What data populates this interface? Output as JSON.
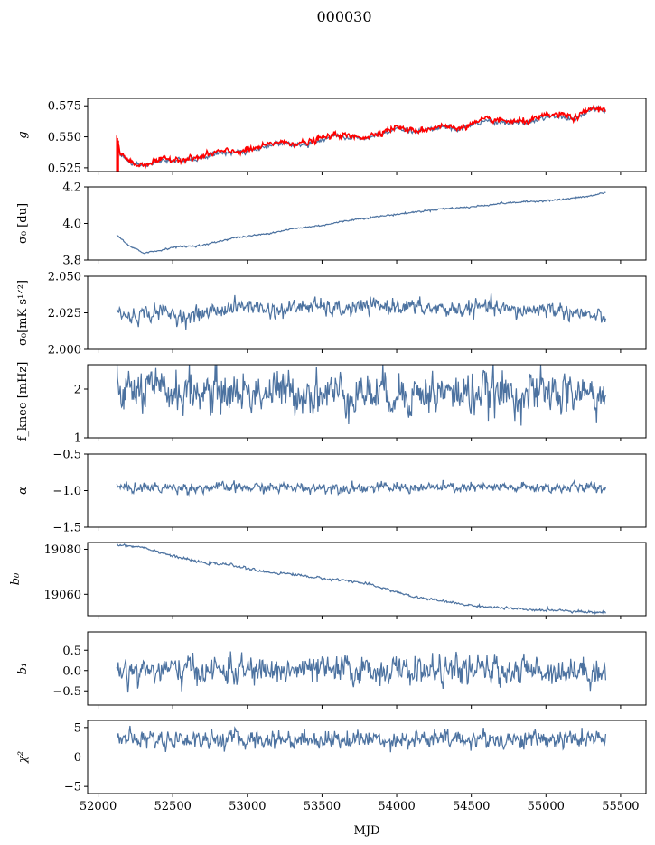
{
  "figure": {
    "suptitle": "000030",
    "shared_xlabel": "MJD",
    "shared_x_ticks": [
      52000,
      52500,
      53000,
      53500,
      54000,
      54500,
      55000,
      55500
    ],
    "shared_xlim": [
      51930,
      55670
    ],
    "series_color": "#4c72a0",
    "overlay_color": "#ff0000"
  },
  "chart_data": [
    {
      "type": "line",
      "ylabel": "g",
      "ylim": [
        0.522,
        0.581
      ],
      "yticks": [
        0.525,
        0.55,
        0.575
      ],
      "ytick_labels": [
        "0.525",
        "0.550",
        "0.575"
      ],
      "x_range": [
        52125,
        55400
      ],
      "series": [
        {
          "color": "#4c72a0",
          "noise": 0.0012,
          "trend": [
            [
              52125,
              0.545
            ],
            [
              52150,
              0.536
            ],
            [
              52200,
              0.53
            ],
            [
              52270,
              0.526
            ],
            [
              52350,
              0.528
            ],
            [
              52450,
              0.531
            ],
            [
              52600,
              0.531
            ],
            [
              52700,
              0.533
            ],
            [
              52800,
              0.537
            ],
            [
              52900,
              0.537
            ],
            [
              53000,
              0.538
            ],
            [
              53100,
              0.541
            ],
            [
              53200,
              0.545
            ],
            [
              53300,
              0.544
            ],
            [
              53400,
              0.544
            ],
            [
              53500,
              0.548
            ],
            [
              53600,
              0.551
            ],
            [
              53700,
              0.549
            ],
            [
              53800,
              0.549
            ],
            [
              53900,
              0.553
            ],
            [
              54000,
              0.557
            ],
            [
              54100,
              0.554
            ],
            [
              54200,
              0.555
            ],
            [
              54300,
              0.558
            ],
            [
              54400,
              0.556
            ],
            [
              54500,
              0.559
            ],
            [
              54600,
              0.563
            ],
            [
              54700,
              0.562
            ],
            [
              54800,
              0.561
            ],
            [
              54900,
              0.562
            ],
            [
              55000,
              0.566
            ],
            [
              55100,
              0.566
            ],
            [
              55200,
              0.564
            ],
            [
              55300,
              0.572
            ],
            [
              55400,
              0.571
            ]
          ]
        },
        {
          "color": "#ff0000",
          "noise": 0.0015,
          "trend": [
            [
              52125,
              0.548
            ],
            [
              52150,
              0.537
            ],
            [
              52200,
              0.531
            ],
            [
              52270,
              0.527
            ],
            [
              52350,
              0.529
            ],
            [
              52450,
              0.532
            ],
            [
              52600,
              0.532
            ],
            [
              52700,
              0.534
            ],
            [
              52800,
              0.538
            ],
            [
              52900,
              0.538
            ],
            [
              53000,
              0.539
            ],
            [
              53100,
              0.542
            ],
            [
              53200,
              0.546
            ],
            [
              53300,
              0.545
            ],
            [
              53400,
              0.545
            ],
            [
              53500,
              0.549
            ],
            [
              53600,
              0.552
            ],
            [
              53700,
              0.55
            ],
            [
              53800,
              0.55
            ],
            [
              53900,
              0.554
            ],
            [
              54000,
              0.558
            ],
            [
              54100,
              0.555
            ],
            [
              54200,
              0.556
            ],
            [
              54300,
              0.559
            ],
            [
              54400,
              0.557
            ],
            [
              54500,
              0.56
            ],
            [
              54600,
              0.564
            ],
            [
              54700,
              0.563
            ],
            [
              54800,
              0.562
            ],
            [
              54900,
              0.563
            ],
            [
              55000,
              0.567
            ],
            [
              55100,
              0.568
            ],
            [
              55200,
              0.565
            ],
            [
              55300,
              0.573
            ],
            [
              55400,
              0.572
            ]
          ]
        }
      ]
    },
    {
      "type": "line",
      "ylabel": "σ₀ [du]",
      "ylim": [
        3.8,
        4.2
      ],
      "yticks": [
        3.8,
        4.0,
        4.2
      ],
      "ytick_labels": [
        "3.8",
        "4.0",
        "4.2"
      ],
      "x_range": [
        52125,
        55400
      ],
      "series": [
        {
          "color": "#4c72a0",
          "noise": 0.003,
          "trend": [
            [
              52125,
              3.94
            ],
            [
              52200,
              3.88
            ],
            [
              52300,
              3.84
            ],
            [
              52400,
              3.85
            ],
            [
              52500,
              3.87
            ],
            [
              52700,
              3.88
            ],
            [
              52900,
              3.92
            ],
            [
              53100,
              3.94
            ],
            [
              53300,
              3.97
            ],
            [
              53500,
              3.99
            ],
            [
              53700,
              4.02
            ],
            [
              53900,
              4.04
            ],
            [
              54100,
              4.06
            ],
            [
              54300,
              4.08
            ],
            [
              54500,
              4.09
            ],
            [
              54700,
              4.11
            ],
            [
              54900,
              4.12
            ],
            [
              55100,
              4.13
            ],
            [
              55300,
              4.15
            ],
            [
              55400,
              4.17
            ]
          ]
        }
      ]
    },
    {
      "type": "line",
      "ylabel": "σ₀[mK s¹ᐟ²]",
      "ylim": [
        2.0,
        2.05
      ],
      "yticks": [
        2.0,
        2.025,
        2.05
      ],
      "ytick_labels": [
        "2.000",
        "2.025",
        "2.050"
      ],
      "x_range": [
        52125,
        55400
      ],
      "series": [
        {
          "color": "#4c72a0",
          "noise": 0.0035,
          "trend": [
            [
              52125,
              2.026
            ],
            [
              52200,
              2.022
            ],
            [
              52400,
              2.026
            ],
            [
              52600,
              2.022
            ],
            [
              52800,
              2.027
            ],
            [
              53000,
              2.03
            ],
            [
              53200,
              2.026
            ],
            [
              53400,
              2.03
            ],
            [
              53600,
              2.027
            ],
            [
              53800,
              2.029
            ],
            [
              54000,
              2.03
            ],
            [
              54200,
              2.028
            ],
            [
              54400,
              2.027
            ],
            [
              54600,
              2.029
            ],
            [
              54800,
              2.026
            ],
            [
              55000,
              2.028
            ],
            [
              55200,
              2.025
            ],
            [
              55400,
              2.021
            ]
          ]
        }
      ]
    },
    {
      "type": "line",
      "ylabel": "f_knee [mHz]",
      "ylim": [
        1.0,
        2.5
      ],
      "yticks": [
        1,
        2
      ],
      "ytick_labels": [
        "1",
        "2"
      ],
      "x_range": [
        52125,
        55400
      ],
      "series": [
        {
          "color": "#4c72a0",
          "noise": 0.28,
          "trend": [
            [
              52125,
              1.95
            ],
            [
              55400,
              1.9
            ]
          ]
        }
      ]
    },
    {
      "type": "line",
      "ylabel": "α",
      "ylim": [
        -1.5,
        -0.5
      ],
      "yticks": [
        -1.5,
        -1.0,
        -0.5
      ],
      "ytick_labels": [
        "−1.5",
        "−1.0",
        "−0.5"
      ],
      "x_range": [
        52125,
        55400
      ],
      "series": [
        {
          "color": "#4c72a0",
          "noise": 0.045,
          "trend": [
            [
              52125,
              -0.96
            ],
            [
              55400,
              -0.96
            ]
          ]
        }
      ]
    },
    {
      "type": "line",
      "ylabel": "b₀",
      "ylim": [
        19050.5,
        19083
      ],
      "yticks": [
        19060,
        19080
      ],
      "ytick_labels": [
        "19060",
        "19080"
      ],
      "x_range": [
        52125,
        55400
      ],
      "series": [
        {
          "color": "#4c72a0",
          "noise": 0.35,
          "trend": [
            [
              52125,
              19082
            ],
            [
              52300,
              19081
            ],
            [
              52500,
              19077
            ],
            [
              52700,
              19074
            ],
            [
              52900,
              19073
            ],
            [
              53100,
              19070
            ],
            [
              53300,
              19069
            ],
            [
              53500,
              19067
            ],
            [
              53700,
              19066
            ],
            [
              53900,
              19063
            ],
            [
              54100,
              19059
            ],
            [
              54300,
              19057
            ],
            [
              54500,
              19055
            ],
            [
              54700,
              19054
            ],
            [
              54900,
              19053
            ],
            [
              55100,
              19053
            ],
            [
              55300,
              19052
            ],
            [
              55400,
              19052
            ]
          ]
        }
      ]
    },
    {
      "type": "line",
      "ylabel": "b₁",
      "ylim": [
        -0.85,
        0.95
      ],
      "yticks": [
        -0.5,
        0.0,
        0.5
      ],
      "ytick_labels": [
        "−0.5",
        "0.0",
        "0.5"
      ],
      "x_range": [
        52125,
        55400
      ],
      "series": [
        {
          "color": "#4c72a0",
          "noise": 0.22,
          "trend": [
            [
              52125,
              0.0
            ],
            [
              55400,
              0.0
            ]
          ]
        }
      ]
    },
    {
      "type": "line",
      "ylabel": "χ²",
      "ylim": [
        -6.2,
        6.2
      ],
      "yticks": [
        -5,
        0,
        5
      ],
      "ytick_labels": [
        "−5",
        "0",
        "5"
      ],
      "x_range": [
        52125,
        55400
      ],
      "series": [
        {
          "color": "#4c72a0",
          "noise": 1.0,
          "trend": [
            [
              52125,
              3.0
            ],
            [
              55400,
              3.0
            ]
          ]
        }
      ]
    }
  ]
}
